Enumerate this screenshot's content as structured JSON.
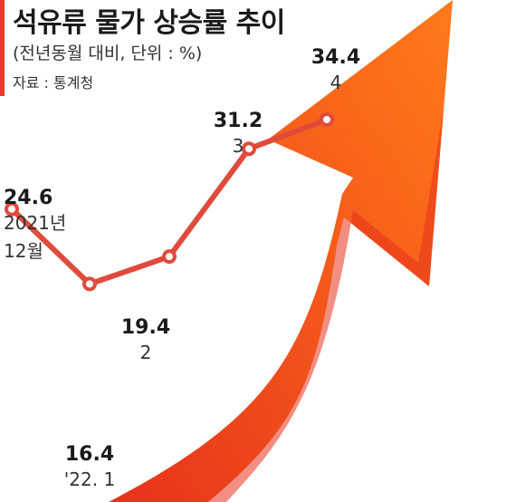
{
  "header": {
    "title": "석유류 물가 상승률 추이",
    "subtitle": "(전년동월 대비, 단위 : %)",
    "source": "자료 : 통계청"
  },
  "colors": {
    "accent": "#e8382b",
    "line": "#e04a3c",
    "arrow_light": "#ff7a1a",
    "arrow_dark": "#e8321c",
    "text": "#1a1a1a"
  },
  "chart_data": {
    "type": "line",
    "title": "석유류 물가 상승률 추이",
    "subtitle": "(전년동월 대비, 단위 : %)",
    "source": "자료 : 통계청",
    "categories": [
      "2021년 12월",
      "'22. 1",
      "2",
      "3",
      "4"
    ],
    "series": [
      {
        "name": "",
        "values": [
          24.6,
          16.4,
          19.4,
          31.2,
          34.4
        ]
      }
    ],
    "points": [
      {
        "value_label": "24.6",
        "x_label_lines": [
          "2021년",
          "12월"
        ]
      },
      {
        "value_label": "16.4",
        "x_label_lines": [
          "'22. 1"
        ]
      },
      {
        "value_label": "19.4",
        "x_label_lines": [
          "2"
        ]
      },
      {
        "value_label": "31.2",
        "x_label_lines": [
          "3"
        ]
      },
      {
        "value_label": "34.4",
        "x_label_lines": [
          "4"
        ]
      }
    ],
    "ylim": [
      10,
      40
    ],
    "grid": false,
    "legend": "none",
    "decoration": "rising-arrow"
  }
}
